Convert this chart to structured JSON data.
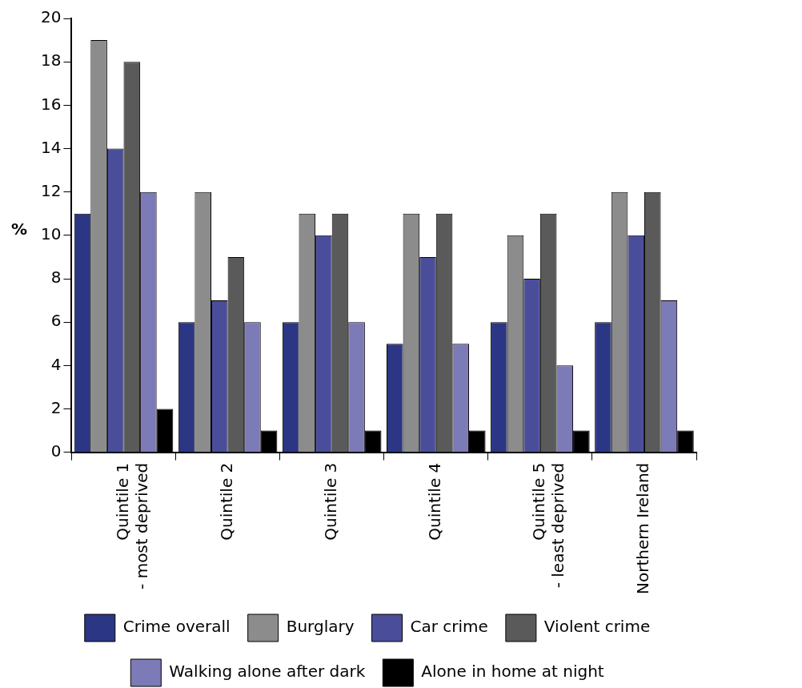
{
  "chart_data": {
    "type": "bar",
    "ylabel": "%",
    "categories": [
      "Quintile 1\n- most deprived",
      "Quintile 2",
      "Quintile 3",
      "Quintile 4",
      "Quintile 5\n- least deprived",
      "Northern Ireland"
    ],
    "series": [
      {
        "name": "Crime overall",
        "color": "#2b3784",
        "values": [
          11,
          6,
          6,
          5,
          6,
          6
        ]
      },
      {
        "name": "Burglary",
        "color": "#8c8c8c",
        "values": [
          19,
          12,
          11,
          11,
          10,
          12
        ]
      },
      {
        "name": "Car crime",
        "color": "#4a4e9a",
        "values": [
          14,
          7,
          10,
          9,
          8,
          10
        ]
      },
      {
        "name": "Violent crime",
        "color": "#5a5a5a",
        "values": [
          18,
          9,
          11,
          11,
          11,
          12
        ]
      },
      {
        "name": "Walking alone after dark",
        "color": "#7d7ab8",
        "values": [
          12,
          6,
          6,
          5,
          4,
          7
        ]
      },
      {
        "name": "Alone in home at night",
        "color": "#000000",
        "values": [
          2,
          1,
          1,
          1,
          1,
          1
        ]
      }
    ],
    "ylim": [
      0,
      20
    ],
    "yticks": [
      0,
      2,
      4,
      6,
      8,
      10,
      12,
      14,
      16,
      18,
      20
    ],
    "grid": false,
    "legend": "bottom"
  }
}
